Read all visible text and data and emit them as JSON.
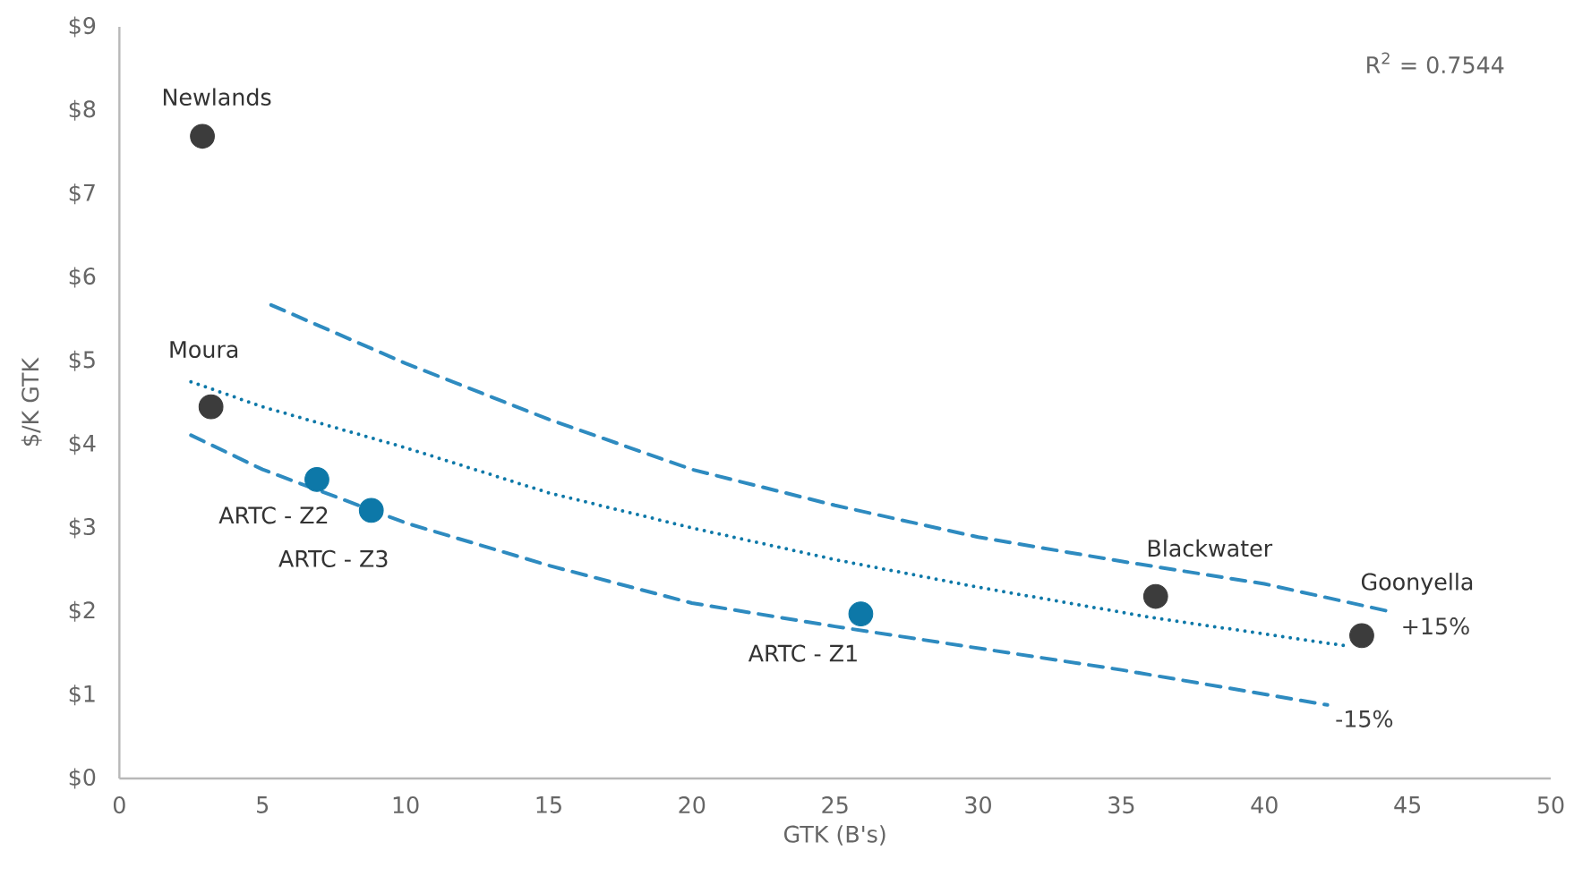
{
  "chart_data": {
    "type": "scatter",
    "xlabel": "GTK (B's)",
    "ylabel": "$/K GTK",
    "xlim": [
      0,
      50
    ],
    "xticks": [
      0,
      5,
      10,
      15,
      20,
      25,
      30,
      35,
      40,
      45,
      50
    ],
    "ylim": [
      0,
      9
    ],
    "yticks": [
      {
        "value": 0,
        "label": "$0"
      },
      {
        "value": 1,
        "label": "$1"
      },
      {
        "value": 2,
        "label": "$2"
      },
      {
        "value": 3,
        "label": "$3"
      },
      {
        "value": 4,
        "label": "$4"
      },
      {
        "value": 5,
        "label": "$5"
      },
      {
        "value": 6,
        "label": "$6"
      },
      {
        "value": 7,
        "label": "$7"
      },
      {
        "value": 8,
        "label": "$8"
      },
      {
        "value": 9,
        "label": "$9"
      }
    ],
    "grid": false,
    "series": [
      {
        "color": "#3c3c3c",
        "x": [
          2.9,
          3.2,
          36.2,
          43.4
        ],
        "values": [
          7.69,
          4.45,
          2.18,
          1.71
        ]
      },
      {
        "color": "#0d78a8",
        "x": [
          6.9,
          8.8,
          25.9
        ],
        "values": [
          3.58,
          3.21,
          1.97
        ]
      },
      {
        "type": "line",
        "color": "#0d78a8",
        "line_style": "dotted",
        "x": [
          2.5,
          5,
          10,
          15,
          20,
          25,
          30,
          36,
          43
        ],
        "values": [
          4.75,
          4.45,
          3.96,
          3.42,
          3.0,
          2.62,
          2.29,
          1.93,
          1.58
        ]
      },
      {
        "type": "line",
        "name": "+15%",
        "color": "#2e8bc0",
        "line_style": "dashed",
        "x": [
          5.3,
          10,
          15,
          20,
          25,
          30,
          35,
          40,
          44.5
        ],
        "values": [
          5.67,
          4.97,
          4.3,
          3.7,
          3.27,
          2.89,
          2.6,
          2.33,
          1.99
        ]
      },
      {
        "type": "line",
        "name": "-15%",
        "color": "#2e8bc0",
        "line_style": "dashed",
        "x": [
          2.5,
          5,
          10,
          15,
          20,
          25,
          30,
          35,
          42.2
        ],
        "values": [
          4.11,
          3.7,
          3.06,
          2.55,
          2.1,
          1.82,
          1.56,
          1.3,
          0.88
        ]
      }
    ],
    "annotations": [
      "R$^{2}$ = 0.7544",
      {
        "text": "Newlands",
        "x": 2.9,
        "y": 7.69
      },
      {
        "text": "Moura",
        "x": 3.2,
        "y": 4.45
      },
      {
        "text": "ARTC - Z2",
        "x": 6.9,
        "y": 3.58
      },
      {
        "text": "ARTC - Z3",
        "x": 8.8,
        "y": 3.21
      },
      {
        "text": "ARTC - Z1",
        "x": 25.9,
        "y": 1.97
      },
      {
        "text": "Blackwater",
        "x": 36.2,
        "y": 2.18
      },
      {
        "text": "Goonyella",
        "x": 43.4,
        "y": 1.71
      }
    ]
  }
}
